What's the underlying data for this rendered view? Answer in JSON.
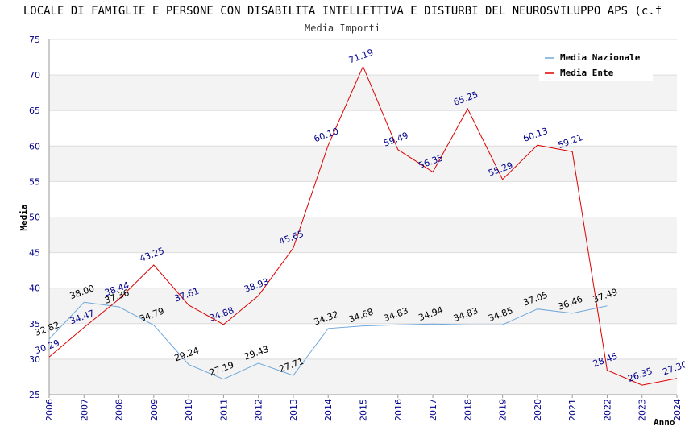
{
  "chart_data": {
    "type": "line",
    "title": "LOCALE DI FAMIGLIE E PERSONE CON DISABILITA INTELLETTIVA E DISTURBI DEL NEUROSVILUPPO APS (c.f",
    "subtitle": "Media Importi",
    "xlabel": "Anno",
    "ylabel": "Media",
    "ylim": [
      25,
      75
    ],
    "yticks": [
      "25",
      "30",
      "35",
      "40",
      "45",
      "50",
      "55",
      "60",
      "65",
      "70",
      "75"
    ],
    "x": [
      "2006",
      "2007",
      "2008",
      "2009",
      "2010",
      "2011",
      "2012",
      "2013",
      "2014",
      "2015",
      "2016",
      "2017",
      "2018",
      "2019",
      "2020",
      "2021",
      "2022",
      "2023",
      "2024"
    ],
    "grid": true,
    "legend_position": "top-right",
    "series": [
      {
        "name": "Media Nazionale",
        "color": "#6fa8dc",
        "values": [
          32.82,
          38.0,
          37.36,
          34.79,
          29.24,
          27.19,
          29.43,
          27.71,
          34.32,
          34.68,
          34.83,
          34.94,
          34.83,
          34.85,
          37.05,
          36.46,
          37.49,
          null,
          null
        ],
        "labels": [
          "32.82",
          "38.00",
          "37.36",
          "34.79",
          "29.24",
          "27.19",
          "29.43",
          "27.71",
          "34.32",
          "34.68",
          "34.83",
          "34.94",
          "34.83",
          "34.85",
          "37.05",
          "36.46",
          "37.49",
          null,
          null
        ]
      },
      {
        "name": "Media Ente",
        "color": "#dd0000",
        "values": [
          30.29,
          34.47,
          38.44,
          43.25,
          37.61,
          34.88,
          38.93,
          45.65,
          60.1,
          71.19,
          59.49,
          56.35,
          65.25,
          55.29,
          60.13,
          59.21,
          28.45,
          26.35,
          27.3
        ],
        "labels": [
          "30.29",
          "34.47",
          "38.44",
          "43.25",
          "37.61",
          "34.88",
          "38.93",
          "45.65",
          "60.10",
          "71.19",
          "59.49",
          "56.35",
          "65.25",
          "55.29",
          "60.13",
          "59.21",
          "28.45",
          "26.35",
          "27.30"
        ]
      }
    ]
  }
}
